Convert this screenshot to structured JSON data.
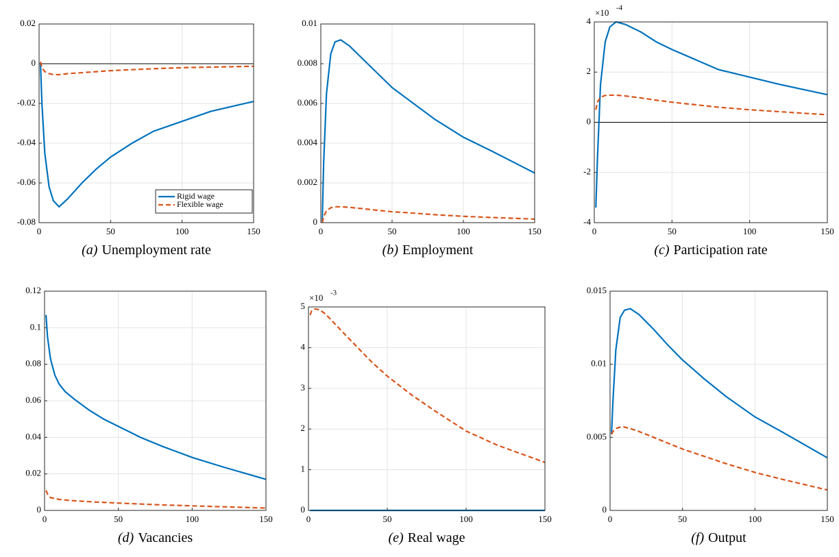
{
  "chart_data": [
    {
      "type": "line",
      "caption_label": "(a)",
      "caption": "Unemployment rate",
      "xlim": [
        0,
        150
      ],
      "xticks": [
        0,
        50,
        100,
        150
      ],
      "ylim": [
        -0.08,
        0.02
      ],
      "yticks": [
        -0.08,
        -0.06,
        -0.04,
        -0.02,
        0,
        0.02
      ],
      "grid": true,
      "zero_line": true,
      "legend": "lower right",
      "x": [
        1,
        2,
        4,
        7,
        10,
        14,
        20,
        30,
        40,
        50,
        65,
        80,
        100,
        120,
        150
      ],
      "series": [
        {
          "name": "Rigid wage",
          "color": "#0072BD",
          "style": "solid",
          "values": [
            0,
            -0.02,
            -0.045,
            -0.062,
            -0.069,
            -0.072,
            -0.068,
            -0.06,
            -0.053,
            -0.047,
            -0.04,
            -0.034,
            -0.029,
            -0.024,
            -0.019
          ]
        },
        {
          "name": "Flexible wage",
          "color": "#D95319",
          "style": "dashed",
          "values": [
            0.001,
            -0.002,
            -0.004,
            -0.005,
            -0.0055,
            -0.0055,
            -0.005,
            -0.0045,
            -0.004,
            -0.0035,
            -0.003,
            -0.0025,
            -0.002,
            -0.0017,
            -0.0013
          ]
        }
      ]
    },
    {
      "type": "line",
      "caption_label": "(b)",
      "caption": "Employment",
      "xlim": [
        0,
        150
      ],
      "xticks": [
        0,
        50,
        100,
        150
      ],
      "ylim": [
        0,
        0.01
      ],
      "yticks": [
        0,
        0.002,
        0.004,
        0.006,
        0.008,
        0.01
      ],
      "grid": true,
      "zero_line": false,
      "x": [
        1,
        2,
        4,
        7,
        10,
        14,
        20,
        30,
        40,
        50,
        65,
        80,
        100,
        120,
        150
      ],
      "series": [
        {
          "color": "#0072BD",
          "style": "solid",
          "values": [
            0,
            0.003,
            0.0065,
            0.0085,
            0.0091,
            0.0092,
            0.0089,
            0.0082,
            0.0075,
            0.0068,
            0.006,
            0.0052,
            0.0043,
            0.0036,
            0.0025
          ]
        },
        {
          "color": "#D95319",
          "style": "dashed",
          "values": [
            0,
            0.0003,
            0.0006,
            0.00075,
            0.0008,
            0.0008,
            0.00077,
            0.0007,
            0.00062,
            0.00055,
            0.00048,
            0.0004,
            0.00032,
            0.00026,
            0.00018
          ]
        }
      ]
    },
    {
      "type": "line",
      "caption_label": "(c)",
      "caption": "Participation rate",
      "multiplier": "×10",
      "exponent": "-4",
      "xlim": [
        0,
        150
      ],
      "xticks": [
        0,
        50,
        100,
        150
      ],
      "ylim": [
        -4,
        4
      ],
      "yticks": [
        -4,
        -2,
        0,
        2,
        4
      ],
      "grid": true,
      "zero_line": true,
      "x": [
        1,
        2,
        4,
        7,
        10,
        14,
        20,
        30,
        40,
        50,
        65,
        80,
        100,
        120,
        150
      ],
      "series": [
        {
          "color": "#0072BD",
          "style": "solid",
          "values": [
            -3.4,
            -1.5,
            1.5,
            3.2,
            3.8,
            4.0,
            3.9,
            3.6,
            3.2,
            2.9,
            2.5,
            2.1,
            1.8,
            1.5,
            1.1
          ]
        },
        {
          "color": "#D95319",
          "style": "dashed",
          "values": [
            0.5,
            0.8,
            1.0,
            1.07,
            1.08,
            1.08,
            1.05,
            0.97,
            0.88,
            0.8,
            0.7,
            0.6,
            0.5,
            0.42,
            0.3
          ]
        }
      ]
    },
    {
      "type": "line",
      "caption_label": "(d)",
      "caption": "Vacancies",
      "xlim": [
        0,
        150
      ],
      "xticks": [
        0,
        50,
        100,
        150
      ],
      "ylim": [
        0,
        0.12
      ],
      "yticks": [
        0,
        0.02,
        0.04,
        0.06,
        0.08,
        0.1,
        0.12
      ],
      "grid": true,
      "zero_line": false,
      "x": [
        1,
        2,
        4,
        7,
        10,
        14,
        20,
        30,
        40,
        50,
        65,
        80,
        100,
        120,
        150
      ],
      "series": [
        {
          "color": "#0072BD",
          "style": "solid",
          "values": [
            0.107,
            0.095,
            0.083,
            0.074,
            0.069,
            0.065,
            0.061,
            0.055,
            0.05,
            0.046,
            0.04,
            0.035,
            0.029,
            0.024,
            0.017
          ]
        },
        {
          "color": "#D95319",
          "style": "dashed",
          "values": [
            0.011,
            0.009,
            0.007,
            0.0065,
            0.006,
            0.0057,
            0.0053,
            0.0048,
            0.0044,
            0.004,
            0.0035,
            0.003,
            0.0025,
            0.002,
            0.0013
          ]
        }
      ]
    },
    {
      "type": "line",
      "caption_label": "(e)",
      "caption": "Real wage",
      "multiplier": "×10",
      "exponent": "-3",
      "xlim": [
        0,
        150
      ],
      "xticks": [
        0,
        50,
        100,
        150
      ],
      "ylim": [
        0,
        5
      ],
      "yticks": [
        0,
        1,
        2,
        3,
        4,
        5
      ],
      "grid": true,
      "zero_line": false,
      "x": [
        1,
        2,
        4,
        7,
        10,
        14,
        20,
        30,
        40,
        50,
        65,
        80,
        100,
        120,
        150
      ],
      "series": [
        {
          "color": "#0072BD",
          "style": "solid",
          "values": [
            0,
            0,
            0,
            0,
            0,
            0,
            0,
            0,
            0,
            0,
            0,
            0,
            0,
            0,
            0
          ]
        },
        {
          "color": "#D95319",
          "style": "dashed",
          "values": [
            4.8,
            4.9,
            4.95,
            4.93,
            4.85,
            4.7,
            4.45,
            4.05,
            3.65,
            3.3,
            2.85,
            2.45,
            1.95,
            1.6,
            1.18
          ]
        }
      ]
    },
    {
      "type": "line",
      "caption_label": "(f)",
      "caption": "Output",
      "xlim": [
        0,
        150
      ],
      "xticks": [
        0,
        50,
        100,
        150
      ],
      "ylim": [
        0,
        0.015
      ],
      "yticks": [
        0,
        0.005,
        0.01,
        0.015
      ],
      "grid": true,
      "zero_line": false,
      "x": [
        1,
        2,
        4,
        7,
        10,
        14,
        20,
        30,
        40,
        50,
        65,
        80,
        100,
        120,
        150
      ],
      "series": [
        {
          "color": "#0072BD",
          "style": "solid",
          "values": [
            0.0052,
            0.0075,
            0.011,
            0.0132,
            0.0137,
            0.0138,
            0.0134,
            0.0124,
            0.0113,
            0.0103,
            0.009,
            0.0078,
            0.0064,
            0.0053,
            0.0036
          ]
        },
        {
          "color": "#D95319",
          "style": "dashed",
          "values": [
            0.0052,
            0.0054,
            0.0056,
            0.0057,
            0.0057,
            0.0056,
            0.0054,
            0.005,
            0.0046,
            0.0042,
            0.0037,
            0.0032,
            0.0026,
            0.0021,
            0.0014
          ]
        }
      ]
    }
  ]
}
